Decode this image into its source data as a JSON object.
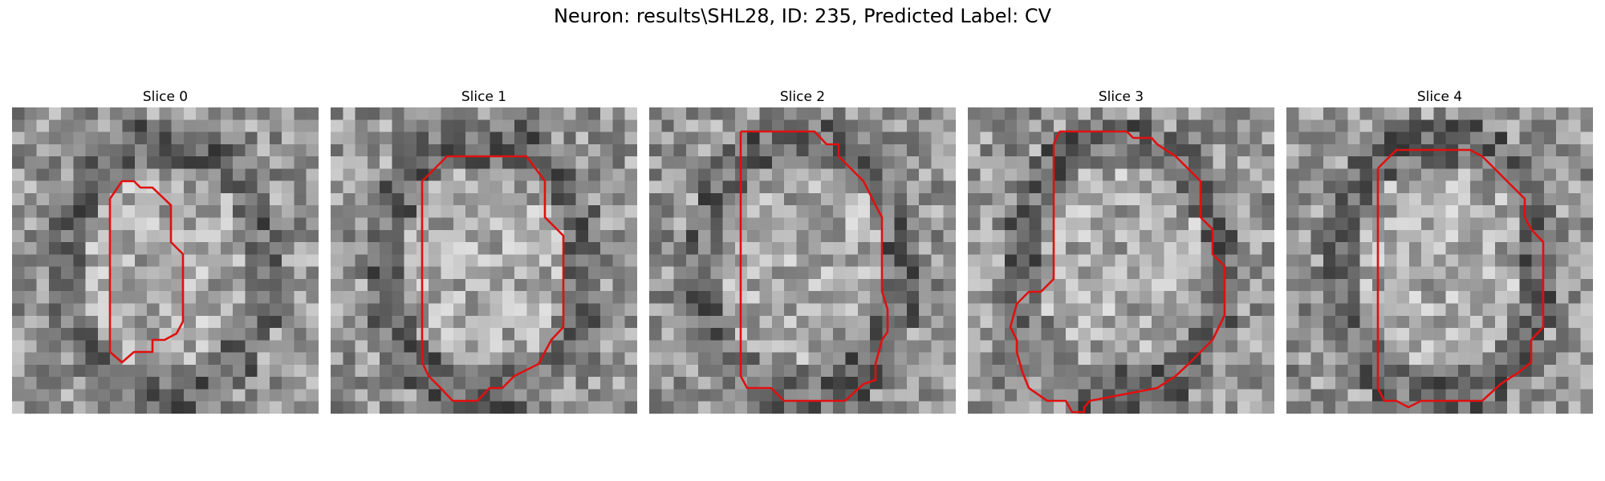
{
  "figure": {
    "title": "Neuron: results\\SHL28, ID: 235, Predicted Label: CV"
  },
  "contour_color": "#e01010",
  "slices": [
    {
      "label": "Slice 0"
    },
    {
      "label": "Slice 1"
    },
    {
      "label": "Slice 2"
    },
    {
      "label": "Slice 3"
    },
    {
      "label": "Slice 4"
    }
  ]
}
